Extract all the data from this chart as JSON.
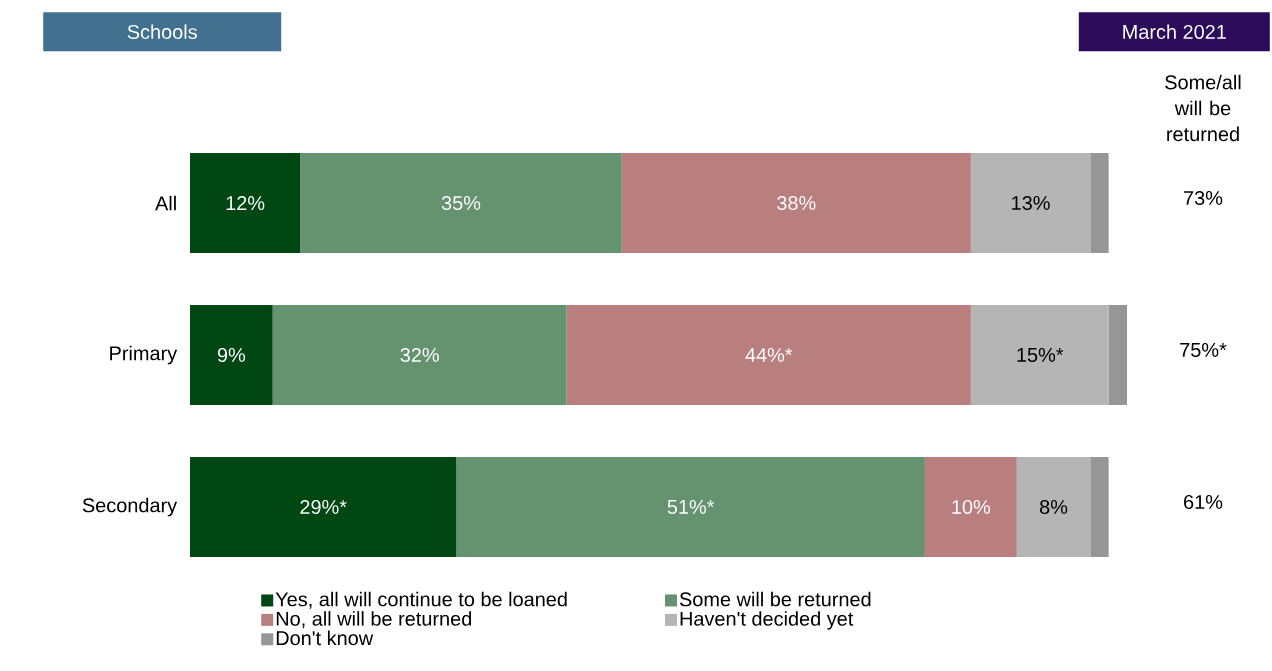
{
  "chart_data": {
    "type": "bar",
    "orientation": "horizontal",
    "stacked": true,
    "title": "Schools",
    "subtitle": "March 2021",
    "categories": [
      "All",
      "Primary",
      "Secondary"
    ],
    "series": [
      {
        "name": "Yes, all will continue to be loaned",
        "color": "#004714",
        "values": [
          12,
          9,
          29
        ],
        "value_labels": [
          "12%",
          "9%",
          "29%*"
        ]
      },
      {
        "name": "Some will be returned",
        "color": "#659370",
        "values": [
          35,
          32,
          51
        ],
        "value_labels": [
          "35%",
          "32%",
          "51%*"
        ]
      },
      {
        "name": "No, all will be returned",
        "color": "#b97e7e",
        "values": [
          38,
          44,
          10
        ],
        "value_labels": [
          "38%",
          "44%*",
          "10%"
        ]
      },
      {
        "name": "Haven't decided yet",
        "color": "#b5b5b5",
        "values": [
          13,
          15,
          8
        ],
        "value_labels": [
          "13%",
          "15%*",
          "8%"
        ]
      },
      {
        "name": "Don't know",
        "color": "#969696",
        "values": [
          2,
          2,
          2
        ]
      }
    ],
    "legend": "bottom",
    "annotations": [
      "Some/all will be returned",
      "73%",
      "75%*",
      "61%"
    ]
  }
}
